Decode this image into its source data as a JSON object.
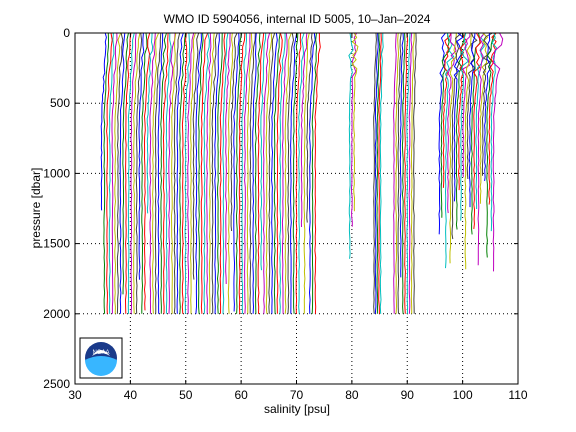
{
  "chart_data": {
    "type": "line",
    "title": "WMO ID 5904056, internal ID 5005, 10–Jan–2024",
    "xlabel": "salinity [psu]",
    "ylabel": "pressure [dbar]",
    "xlim": [
      30,
      110
    ],
    "ylim": [
      0,
      2500
    ],
    "y_reversed": true,
    "grid": true,
    "xticks": [
      "30",
      "40",
      "50",
      "60",
      "70",
      "80",
      "90",
      "100",
      "110"
    ],
    "yticks": [
      "0",
      "500",
      "1000",
      "1500",
      "2000",
      "2500"
    ],
    "series_colors": [
      "#0000ff",
      "#008000",
      "#ff0000",
      "#00bfbf",
      "#bf00bf",
      "#bfbf00",
      "#404040"
    ],
    "groups": [
      {
        "x_start": 34.8,
        "x_end": 73.4,
        "profiles": 80,
        "base_max_pressure": 2000,
        "surface_offset": 0.8
      },
      {
        "x_start": 79.6,
        "x_end": 80.4,
        "profiles": 3,
        "base_max_pressure": 1900,
        "surface_offset": 0.3
      },
      {
        "x_start": 84.0,
        "x_end": 85.2,
        "profiles": 5,
        "base_max_pressure": 2000,
        "surface_offset": 0.4
      },
      {
        "x_start": 87.6,
        "x_end": 91.2,
        "profiles": 10,
        "base_max_pressure": 2000,
        "surface_offset": 0.4
      },
      {
        "x_start": 95.8,
        "x_end": 105.6,
        "profiles": 26,
        "base_max_pressure": 1700,
        "surface_offset": 1.0
      }
    ]
  },
  "logo": {
    "text": "NOAA"
  }
}
